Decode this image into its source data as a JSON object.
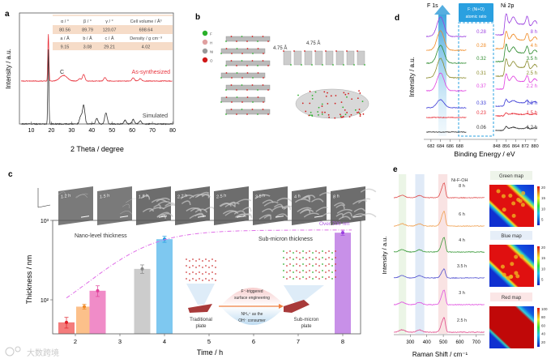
{
  "panels": {
    "a": "a",
    "b": "b",
    "c": "c",
    "d": "d",
    "e": "e"
  },
  "chart_data": [
    {
      "id": "a",
      "type": "line",
      "xlabel": "2 Theta / degree",
      "ylabel": "Intensity / a.u.",
      "xlim": [
        5,
        80
      ],
      "xticks": [
        "10",
        "20",
        "30",
        "40",
        "50",
        "60",
        "70",
        "80"
      ],
      "series": [
        {
          "name": "As-synthesized",
          "color": "#e8323c",
          "peaks": [
            [
              18.5,
              1.0
            ],
            [
              26,
              0.12
            ],
            [
              34,
              0.05
            ],
            [
              36,
              0.14
            ],
            [
              46.5,
              0.07
            ],
            [
              60.5,
              0.07
            ],
            [
              64,
              0.05
            ]
          ]
        },
        {
          "name": "Simulated",
          "color": "#333333",
          "peaks": [
            [
              18.5,
              1.0
            ],
            [
              34.5,
              0.1
            ],
            [
              36,
              0.25
            ],
            [
              42.5,
              0.07
            ],
            [
              47,
              0.15
            ],
            [
              56.5,
              0.05
            ],
            [
              60.5,
              0.06
            ],
            [
              64,
              0.04
            ]
          ]
        }
      ],
      "annotation": "C",
      "table": {
        "rows": [
          [
            "α / °",
            "β / °",
            "γ / °",
            "Cell volume / Å³"
          ],
          [
            "80.56",
            "89.79",
            "120.07",
            "698.64"
          ],
          [
            "a / Å",
            "b / Å",
            "c / Å",
            "Density / g cm⁻³"
          ],
          [
            "9.15",
            "3.08",
            "29.21",
            "4.02"
          ]
        ]
      }
    },
    {
      "id": "d",
      "type": "line",
      "xlabel": "Binding Energy / eV",
      "ylabel": "Intensity / a.u.",
      "xticks_left": [
        "682",
        "684",
        "686",
        "688"
      ],
      "xticks_right": [
        "848",
        "856",
        "864",
        "872",
        "880"
      ],
      "region_labels": [
        "F 1s",
        "Ni 2p"
      ],
      "box_label": [
        "F: (Ni+O)",
        "atomic ratio"
      ],
      "series": [
        {
          "name": "1.2 h",
          "ratio": "0.06",
          "color": "#333333",
          "f_amp": 0.02
        },
        {
          "name": "1.5 h",
          "ratio": "0.23",
          "color": "#e8323c",
          "f_amp": 0.02
        },
        {
          "name": "1.8 h",
          "ratio": "0.33",
          "color": "#3b3bd6",
          "f_amp": 0.35
        },
        {
          "name": "2.2 h",
          "ratio": "0.37",
          "color": "#e040e0",
          "f_amp": 1.0
        },
        {
          "name": "2.5 h",
          "ratio": "0.31",
          "color": "#8a8a2a",
          "f_amp": 1.0
        },
        {
          "name": "3.5 h",
          "ratio": "0.32",
          "color": "#2e8b2e",
          "f_amp": 1.0
        },
        {
          "name": "4 h",
          "ratio": "0.28",
          "color": "#f08a24",
          "f_amp": 1.0
        },
        {
          "name": "8 h",
          "ratio": "0.28",
          "color": "#9b3fe0",
          "f_amp": 1.0
        }
      ]
    },
    {
      "id": "c",
      "type": "bar",
      "xlabel": "Time / h",
      "ylabel": "Thickness / nm",
      "xlim": [
        1.5,
        8.4
      ],
      "ylim": [
        37,
        1000
      ],
      "yscale": "log",
      "xticks": [
        "2",
        "3",
        "4",
        "5",
        "6",
        "7",
        "8"
      ],
      "yticks": [
        "10²",
        "10³"
      ],
      "bars": [
        {
          "x": 1.8,
          "value": 52,
          "err": 8,
          "color": "#f47c7c",
          "dot": "#e0202a"
        },
        {
          "x": 2.2,
          "value": 82,
          "err": 6,
          "color": "#fcc08a",
          "dot": "#f08a24"
        },
        {
          "x": 2.5,
          "value": 130,
          "err": 20,
          "color": "#f08cc8",
          "dot": "#e0409a"
        },
        {
          "x": 3.5,
          "value": 245,
          "err": 30,
          "color": "#cccccc",
          "dot": "#888888"
        },
        {
          "x": 4,
          "value": 580,
          "err": 50,
          "color": "#7ec8f0",
          "dot": "#1a9ae0"
        },
        {
          "x": 8,
          "value": 700,
          "err": 50,
          "color": "#c890e8",
          "dot": "#9b3fe0"
        }
      ],
      "sem_labels": [
        "1.2 h",
        "1.5 h",
        "1.8 h",
        "2.2 h",
        "2.5 h",
        "3.5 h",
        "4 h",
        "8 h"
      ],
      "annotations": {
        "nano": "Nano-level thickness",
        "submicron": "Sub-micron thickness",
        "over": "Over 700 nm",
        "traditional": [
          "Traditional",
          "plate"
        ],
        "subplate": [
          "Sub-micron",
          "plate"
        ],
        "arrow_top": [
          "F⁻-triggered",
          "surface engineering"
        ],
        "arrow_bottom": [
          "NH₄⁺ as the",
          "OH⁻ consumer"
        ]
      }
    },
    {
      "id": "e",
      "type": "line",
      "xlabel": "Raman Shift / cm⁻¹",
      "ylabel": "Intensity / a.u.",
      "xlim": [
        200,
        750
      ],
      "xticks": [
        "300",
        "400",
        "500",
        "600",
        "700"
      ],
      "peak_label": "Ni-F-OH",
      "series": [
        {
          "name": "8 h",
          "color": "#e05050"
        },
        {
          "name": "6 h",
          "color": "#f0a050"
        },
        {
          "name": "4 h",
          "color": "#3a9a3a"
        },
        {
          "name": "3.5 h",
          "color": "#5050d0"
        },
        {
          "name": "3 h",
          "color": "#e050e0"
        },
        {
          "name": "2.5 h",
          "color": "#e04a8a"
        }
      ],
      "maps": [
        {
          "title": "Green map",
          "ticks": [
            "20",
            "15",
            "10",
            "5"
          ]
        },
        {
          "title": "Blue map",
          "ticks": [
            "20",
            "15",
            "10",
            "5"
          ]
        },
        {
          "title": "Red map",
          "ticks": [
            "100",
            "80",
            "60",
            "40",
            "20"
          ]
        }
      ]
    }
  ],
  "structure": {
    "legend": [
      "F",
      "H",
      "Ni",
      "O"
    ],
    "spacing_label": "4.75 Å"
  },
  "watermark": "大数跨境"
}
